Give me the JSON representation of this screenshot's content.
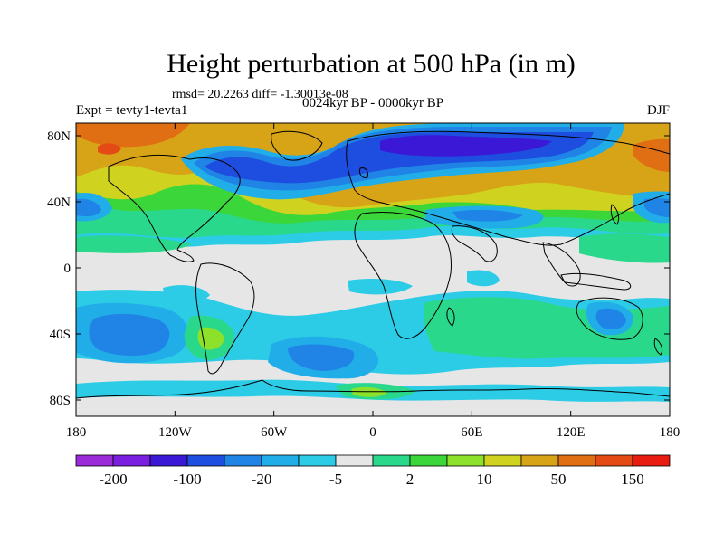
{
  "figure": {
    "title": "Height perturbation at 500 hPa (in m)",
    "stats": "rmsd= 20.2263 diff= -1.30013e-08",
    "experiment": "Expt = tevty1-tevta1",
    "period": "0024kyr BP - 0000kyr BP",
    "season": "DJF"
  },
  "axes": {
    "y_ticks": [
      "80N",
      "40N",
      "0",
      "40S",
      "80S"
    ],
    "x_ticks": [
      "180",
      "120W",
      "60W",
      "0",
      "60E",
      "120E",
      "180"
    ]
  },
  "colorbar": {
    "colors": [
      "#9b2bd8",
      "#7a1fe0",
      "#3a18d6",
      "#1e4ee0",
      "#1f84e6",
      "#21aee8",
      "#2ccce6",
      "#e6e6e6",
      "#2ad88c",
      "#3bd63a",
      "#8ee12a",
      "#cfd31f",
      "#d8a417",
      "#e06f14",
      "#e34a14",
      "#e81c10"
    ],
    "labels": [
      "-200",
      "-100",
      "-20",
      "-5",
      "2",
      "10",
      "50",
      "150"
    ]
  },
  "palette": {
    "grey": "#e6e6e6",
    "cyan": "#2ccce6",
    "lightblue": "#21aee8",
    "blue": "#1f84e6",
    "darkblue": "#1e4ee0",
    "navy": "#3a18d6",
    "green": "#2ad88c",
    "lime": "#3bd63a",
    "yellowgreen": "#8ee12a",
    "yellow": "#cfd31f",
    "orange": "#d8a417",
    "darkorange": "#e06f14",
    "red": "#e34a14"
  }
}
